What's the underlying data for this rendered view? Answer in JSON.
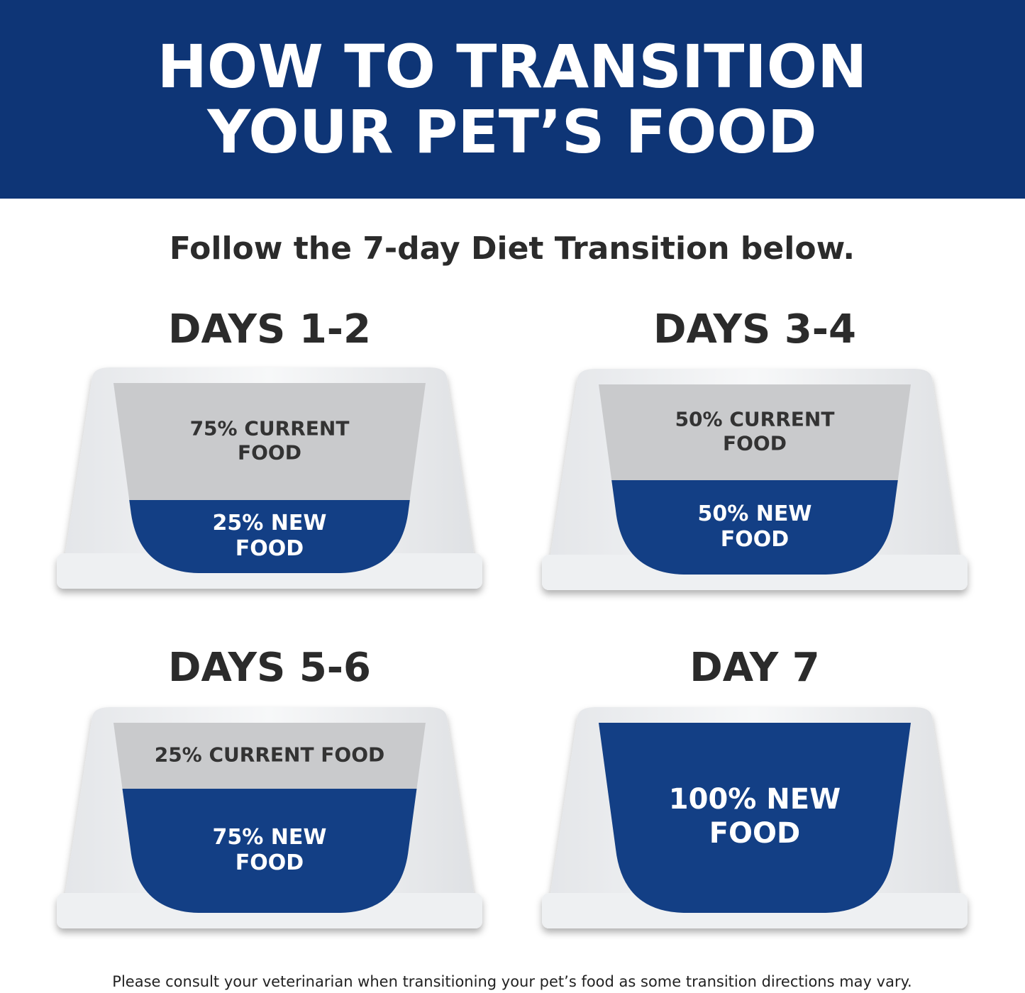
{
  "header": {
    "title": [
      "HOW TO TRANSITION",
      "YOUR PET’S FOOD"
    ]
  },
  "subtitle": "Follow the 7-day Diet Transition below.",
  "panels": [
    {
      "label": "DAYS 1-2",
      "current": [
        "75% CURRENT",
        "FOOD"
      ],
      "new": [
        "25% NEW",
        "FOOD"
      ]
    },
    {
      "label": "DAYS 3-4",
      "current": [
        "50% CURRENT",
        "FOOD"
      ],
      "new": [
        "50% NEW",
        "FOOD"
      ]
    },
    {
      "label": "DAYS 5-6",
      "current": [
        "25% CURRENT FOOD"
      ],
      "new": [
        "75% NEW",
        "FOOD"
      ]
    },
    {
      "label": "DAY 7",
      "current": [],
      "new": [
        "100% NEW",
        "FOOD"
      ]
    }
  ],
  "footer": "Please consult your veterinarian when transitioning your pet’s food as some transition directions may vary."
}
